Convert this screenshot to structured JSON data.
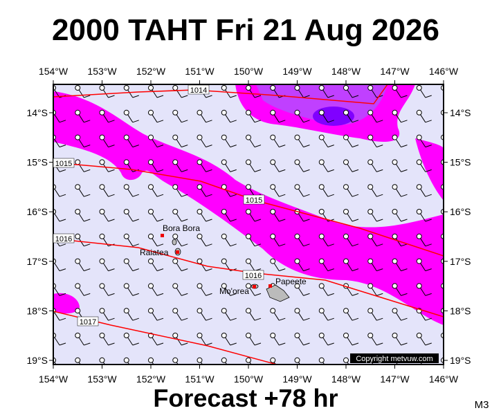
{
  "header": {
    "title": "2000 TAHT Fri 21 Aug 2026"
  },
  "map": {
    "lon_labels": [
      "154°W",
      "153°W",
      "152°W",
      "151°W",
      "150°W",
      "149°W",
      "148°W",
      "147°W",
      "146°W"
    ],
    "lat_labels": [
      "14°S",
      "15°S",
      "16°S",
      "17°S",
      "18°S",
      "19°S"
    ],
    "isobar_labels": [
      "1014",
      "1015",
      "1015",
      "1016",
      "1016",
      "1017"
    ],
    "places": [
      "Bora Bora",
      "Raiatea",
      "Mo'orea",
      "Papeete"
    ],
    "copyright": "Copyright metvuw.com"
  },
  "footer": {
    "forecast": "Forecast +78 hr",
    "code": "M3"
  }
}
